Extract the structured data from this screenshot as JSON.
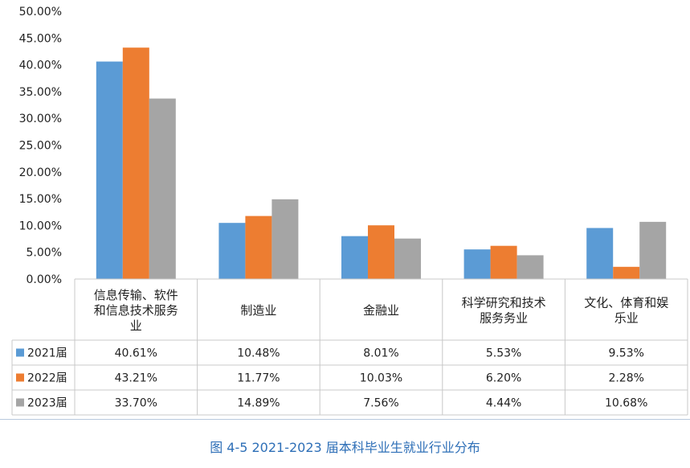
{
  "chart_data": {
    "type": "bar",
    "categories": [
      [
        "信息传输、软件",
        "和信息技术服务",
        "业"
      ],
      [
        "制造业"
      ],
      [
        "金融业"
      ],
      [
        "科学研究和技术",
        "服务务业"
      ],
      [
        "文化、体育和娱",
        "乐业"
      ]
    ],
    "series": [
      {
        "name": "2021届",
        "color": "#5b9bd5",
        "values": [
          40.61,
          10.48,
          8.01,
          5.53,
          9.53
        ],
        "labels": [
          "40.61%",
          "10.48%",
          "8.01%",
          "5.53%",
          "9.53%"
        ]
      },
      {
        "name": "2022届",
        "color": "#ed7d31",
        "values": [
          43.21,
          11.77,
          10.03,
          6.2,
          2.28
        ],
        "labels": [
          "43.21%",
          "11.77%",
          "10.03%",
          "6.20%",
          "2.28%"
        ]
      },
      {
        "name": "2023届",
        "color": "#a5a5a5",
        "values": [
          33.7,
          14.89,
          7.56,
          4.44,
          10.68
        ],
        "labels": [
          "33.70%",
          "14.89%",
          "7.56%",
          "4.44%",
          "10.68%"
        ]
      }
    ],
    "ylim": [
      0,
      50
    ],
    "yticks": [
      "0.00%",
      "5.00%",
      "10.00%",
      "15.00%",
      "20.00%",
      "25.00%",
      "30.00%",
      "35.00%",
      "40.00%",
      "45.00%",
      "50.00%"
    ],
    "grid": false,
    "legend": "data-table",
    "caption": "图 4-5  2021-2023 届本科毕业生就业行业分布"
  }
}
